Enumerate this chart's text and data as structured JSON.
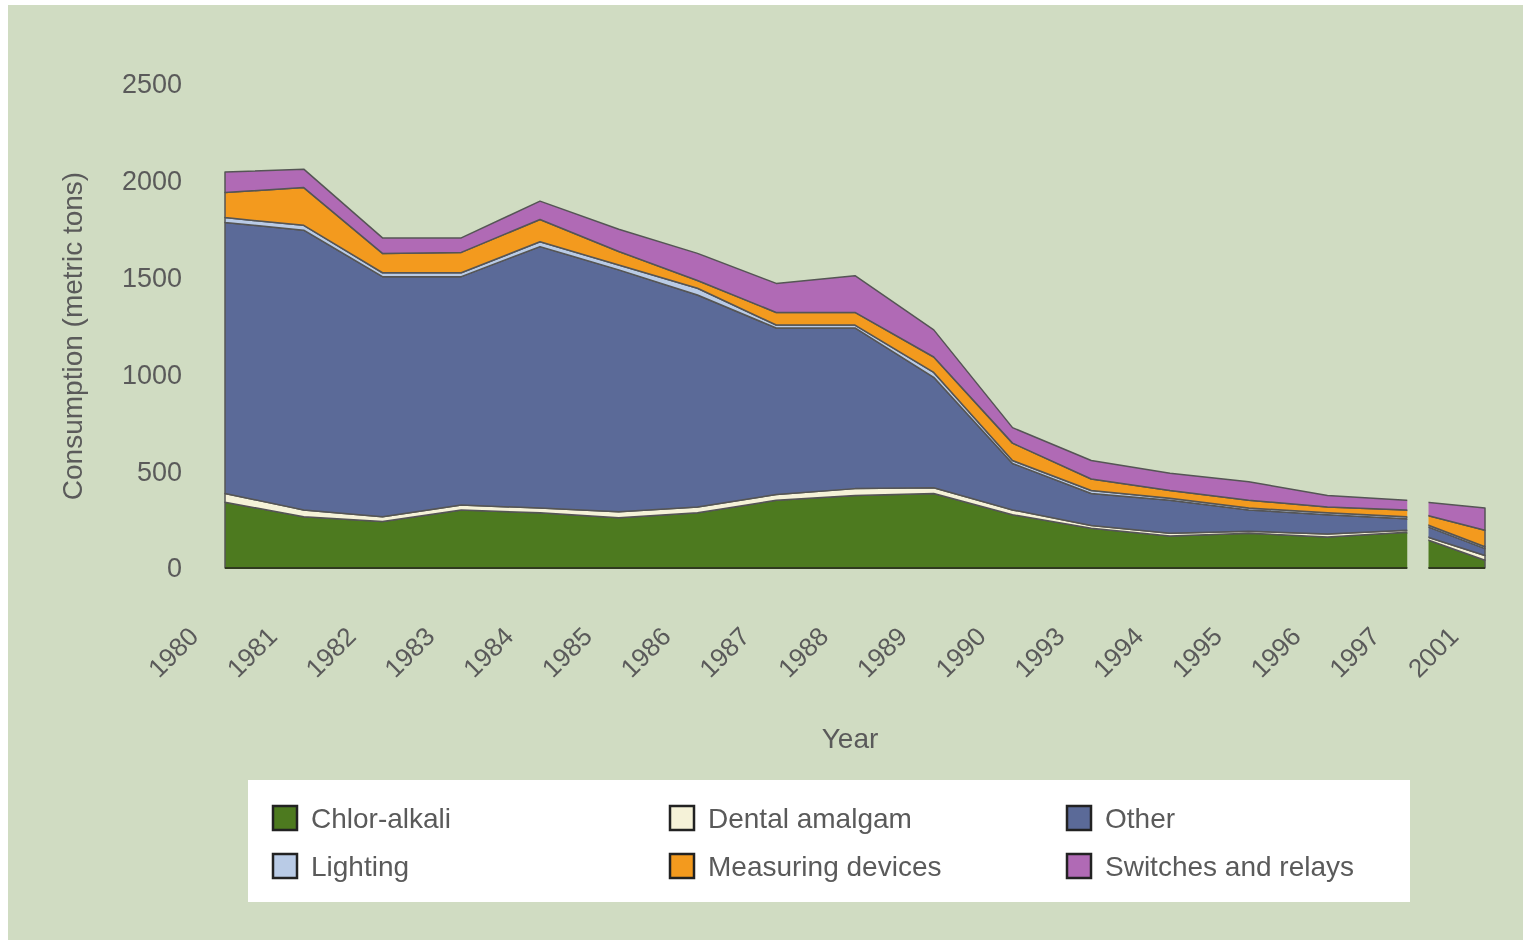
{
  "chart_data": {
    "type": "area",
    "stacked": true,
    "xlabel": "Year",
    "ylabel": "Consumption (metric tons)",
    "categories": [
      "1980",
      "1981",
      "1982",
      "1983",
      "1984",
      "1985",
      "1986",
      "1987",
      "1988",
      "1989",
      "1990",
      "1993",
      "1994",
      "1995",
      "1996",
      "1997",
      "2001"
    ],
    "series": [
      {
        "name": "Chlor-alkali",
        "color": "#4d7a1f",
        "values": [
          340,
          265,
          240,
          300,
          285,
          260,
          285,
          350,
          375,
          385,
          275,
          205,
          165,
          180,
          160,
          185,
          40
        ]
      },
      {
        "name": "Dental amalgam",
        "color": "#f5f2d8",
        "values": [
          45,
          35,
          25,
          25,
          25,
          30,
          30,
          30,
          35,
          30,
          25,
          15,
          15,
          10,
          15,
          10,
          25
        ]
      },
      {
        "name": "Other",
        "color": "#5b6a98",
        "values": [
          1400,
          1445,
          1240,
          1180,
          1350,
          1250,
          1095,
          860,
          830,
          570,
          240,
          165,
          170,
          110,
          100,
          60,
          35
        ]
      },
      {
        "name": "Lighting",
        "color": "#b9cbe6",
        "values": [
          25,
          25,
          20,
          20,
          25,
          25,
          35,
          15,
          15,
          25,
          15,
          15,
          10,
          10,
          10,
          10,
          10
        ]
      },
      {
        "name": "Measuring devices",
        "color": "#f39a1e",
        "values": [
          130,
          195,
          100,
          105,
          115,
          70,
          40,
          65,
          65,
          80,
          90,
          60,
          40,
          40,
          30,
          35,
          85
        ]
      },
      {
        "name": "Switches and relays",
        "color": "#b06ab5",
        "values": [
          105,
          95,
          80,
          75,
          95,
          115,
          140,
          150,
          190,
          140,
          80,
          95,
          90,
          95,
          60,
          50,
          115
        ]
      }
    ],
    "ylim": [
      0,
      2500
    ],
    "yticks": [
      0,
      500,
      1000,
      1500,
      2000,
      2500
    ],
    "grid": false,
    "legend": "bottom"
  }
}
